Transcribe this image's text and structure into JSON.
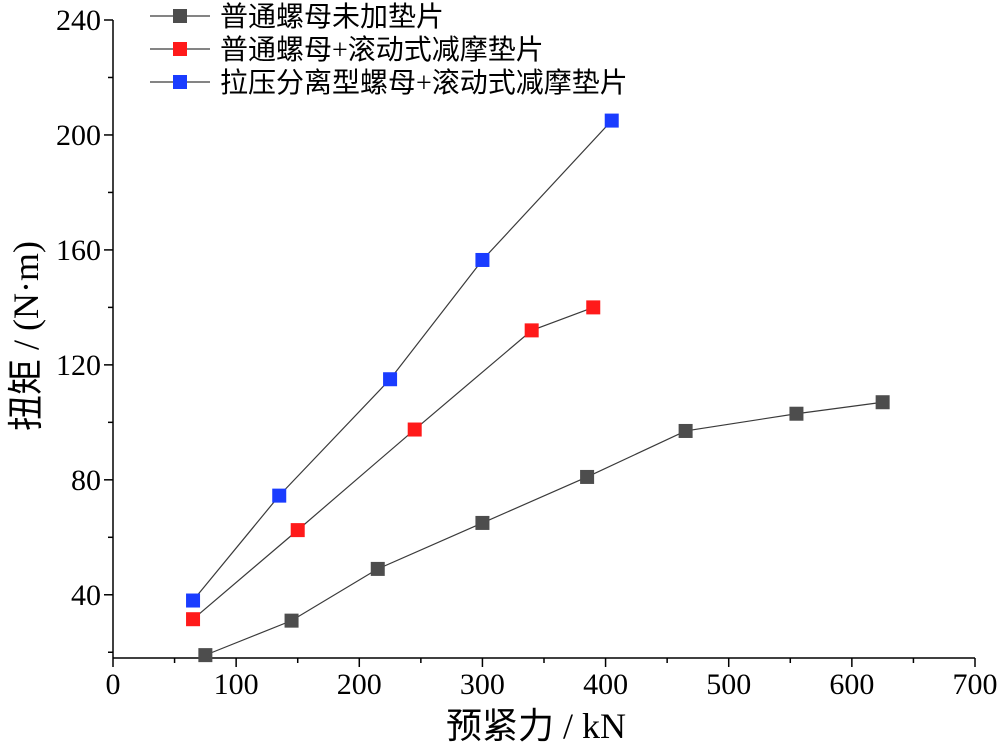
{
  "chart_data": {
    "type": "line",
    "xlabel": "预紧力 / kN",
    "ylabel": "扭矩 / (N·m)",
    "xlim": [
      0,
      700
    ],
    "ylim": [
      18,
      240
    ],
    "xticks": [
      0,
      100,
      200,
      300,
      400,
      500,
      600,
      700
    ],
    "yticks": [
      40,
      80,
      120,
      160,
      200,
      240
    ],
    "grid": false,
    "legend_position": "top-left",
    "series": [
      {
        "name": "普通螺母未加垫片",
        "color": "#4d4d4d",
        "x": [
          75,
          145,
          215,
          300,
          385,
          465,
          555,
          625
        ],
        "y": [
          19,
          31,
          49,
          65,
          81,
          97,
          103,
          107
        ]
      },
      {
        "name": "普通螺母+滚动式减摩垫片",
        "color": "#ff1a1a",
        "x": [
          65,
          150,
          245,
          340,
          390
        ],
        "y": [
          31.5,
          62.5,
          97.5,
          132,
          140
        ]
      },
      {
        "name": "拉压分离型螺母+滚动式减摩垫片",
        "color": "#1a3cff",
        "x": [
          65,
          135,
          225,
          300,
          405
        ],
        "y": [
          38,
          74.5,
          115,
          156.5,
          205
        ]
      }
    ]
  }
}
